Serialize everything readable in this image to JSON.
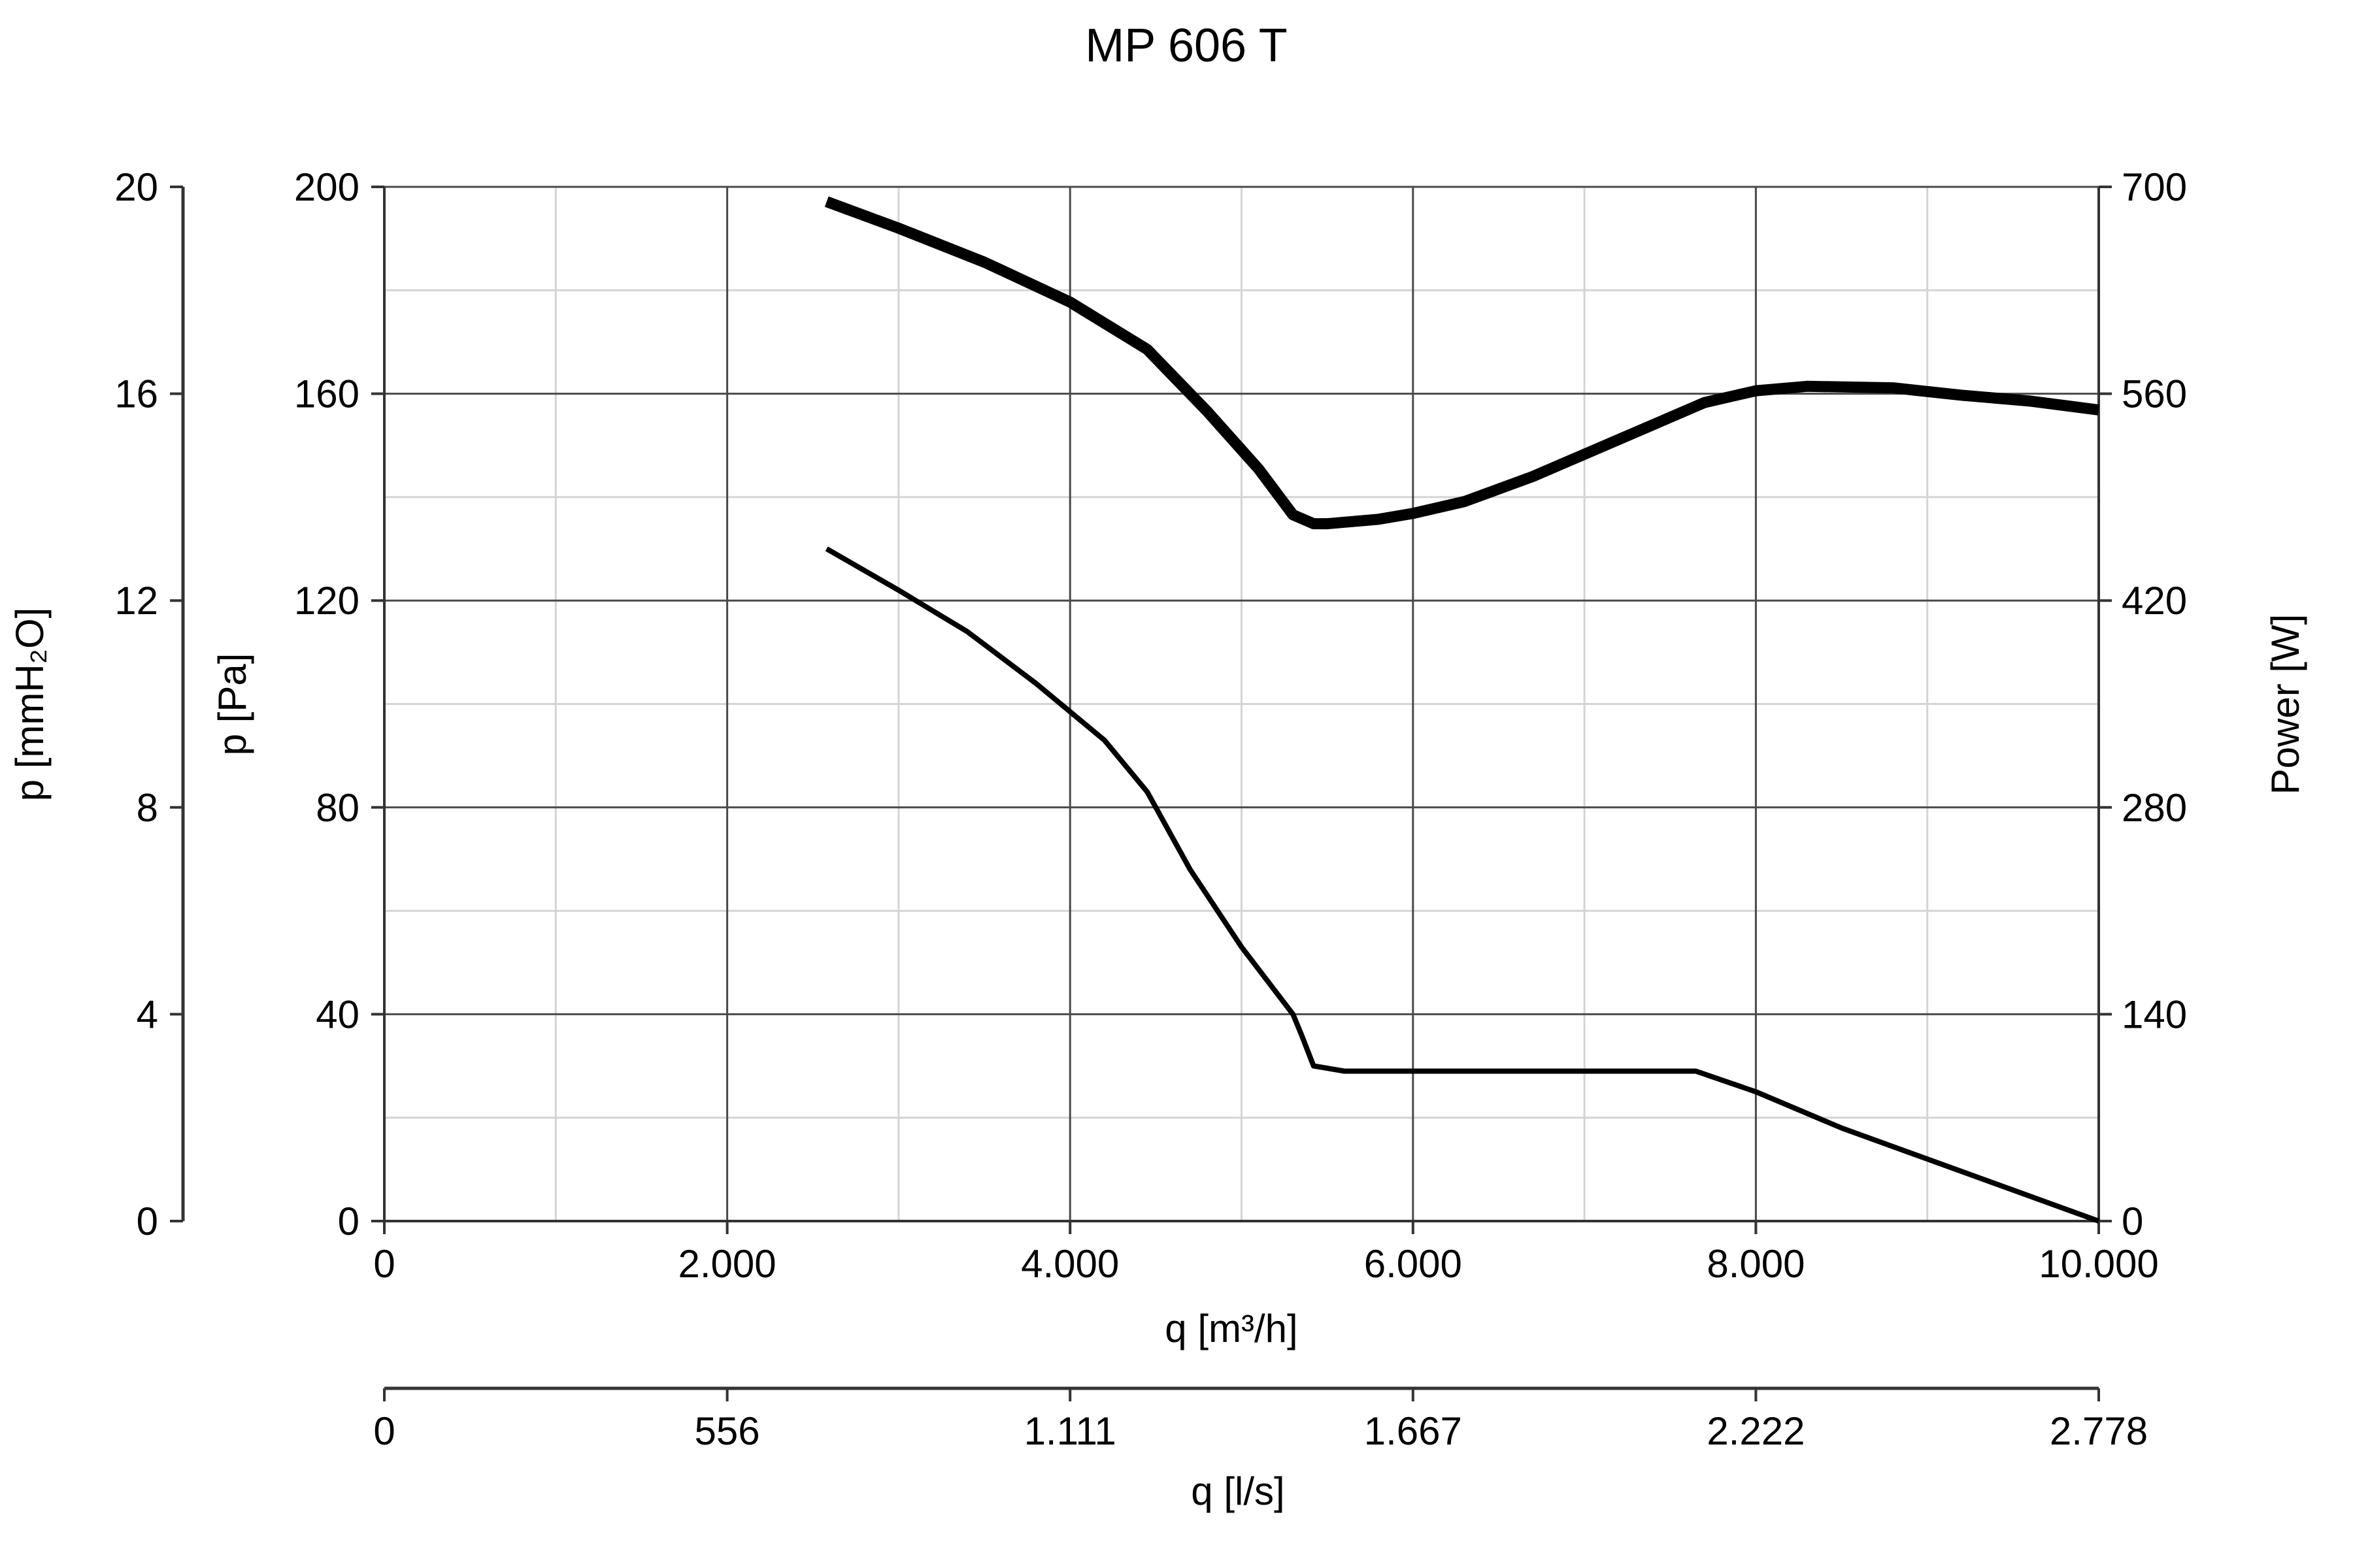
{
  "chart_data": {
    "type": "line",
    "title": "MP 606 T",
    "xlabel": "q [m³/h]",
    "x2label": "q [l/s]",
    "y_left_outer_label": "p [mmH₂O]",
    "y_left_label": "p [Pa]",
    "y_right_label": "Power [W]",
    "xlim": [
      0,
      10000
    ],
    "ylim": [
      0,
      200
    ],
    "y_right_lim": [
      0,
      700
    ],
    "y_outer_lim": [
      0,
      20
    ],
    "grid": true,
    "x_ticks": [
      {
        "value": 0,
        "label": "0"
      },
      {
        "value": 2000,
        "label": "2.000"
      },
      {
        "value": 4000,
        "label": "4.000"
      },
      {
        "value": 6000,
        "label": "6.000"
      },
      {
        "value": 8000,
        "label": "8.000"
      },
      {
        "value": 10000,
        "label": "10.000"
      }
    ],
    "x2_ticks": [
      {
        "value": 0,
        "label": "0"
      },
      {
        "value": 2000,
        "label": "556"
      },
      {
        "value": 4000,
        "label": "1.111"
      },
      {
        "value": 6000,
        "label": "1.667"
      },
      {
        "value": 8000,
        "label": "2.222"
      },
      {
        "value": 10000,
        "label": "2.778"
      }
    ],
    "y_ticks": [
      {
        "value": 0,
        "label": "0"
      },
      {
        "value": 40,
        "label": "40"
      },
      {
        "value": 80,
        "label": "80"
      },
      {
        "value": 120,
        "label": "120"
      },
      {
        "value": 160,
        "label": "160"
      },
      {
        "value": 200,
        "label": "200"
      }
    ],
    "y_outer_ticks": [
      {
        "value": 0,
        "label": "0"
      },
      {
        "value": 40,
        "label": "4"
      },
      {
        "value": 80,
        "label": "8"
      },
      {
        "value": 120,
        "label": "12"
      },
      {
        "value": 160,
        "label": "16"
      },
      {
        "value": 200,
        "label": "20"
      }
    ],
    "y_right_ticks": [
      {
        "value": 0,
        "label": "0"
      },
      {
        "value": 40,
        "label": "140"
      },
      {
        "value": 80,
        "label": "280"
      },
      {
        "value": 120,
        "label": "420"
      },
      {
        "value": 160,
        "label": "560"
      },
      {
        "value": 200,
        "label": "700"
      }
    ],
    "series": [
      {
        "axis": "right",
        "unit": "W",
        "thick": true,
        "x": [
          2580,
          3000,
          3500,
          4000,
          4450,
          4800,
          5100,
          5300,
          5420,
          5500,
          5800,
          6000,
          6300,
          6700,
          7200,
          7700,
          8000,
          8300,
          8800,
          9200,
          9600,
          10000
        ],
        "y": [
          690,
          672,
          649,
          622,
          590,
          548,
          509,
          478,
          472,
          472,
          475,
          479,
          487,
          504,
          529,
          554,
          562,
          565,
          564,
          559,
          555,
          549
        ]
      },
      {
        "axis": "left",
        "unit": "Pa",
        "thick": false,
        "x": [
          2580,
          3000,
          3400,
          3800,
          4200,
          4450,
          4700,
          5000,
          5300,
          5350,
          5420,
          5600,
          6000,
          6500,
          7000,
          7650,
          8000,
          8500,
          9000,
          9500,
          10000
        ],
        "y": [
          130,
          122,
          114,
          104,
          93,
          83,
          68,
          53,
          40,
          36,
          30,
          29,
          29,
          29,
          29,
          29,
          25,
          18,
          12,
          6,
          0
        ]
      }
    ]
  }
}
